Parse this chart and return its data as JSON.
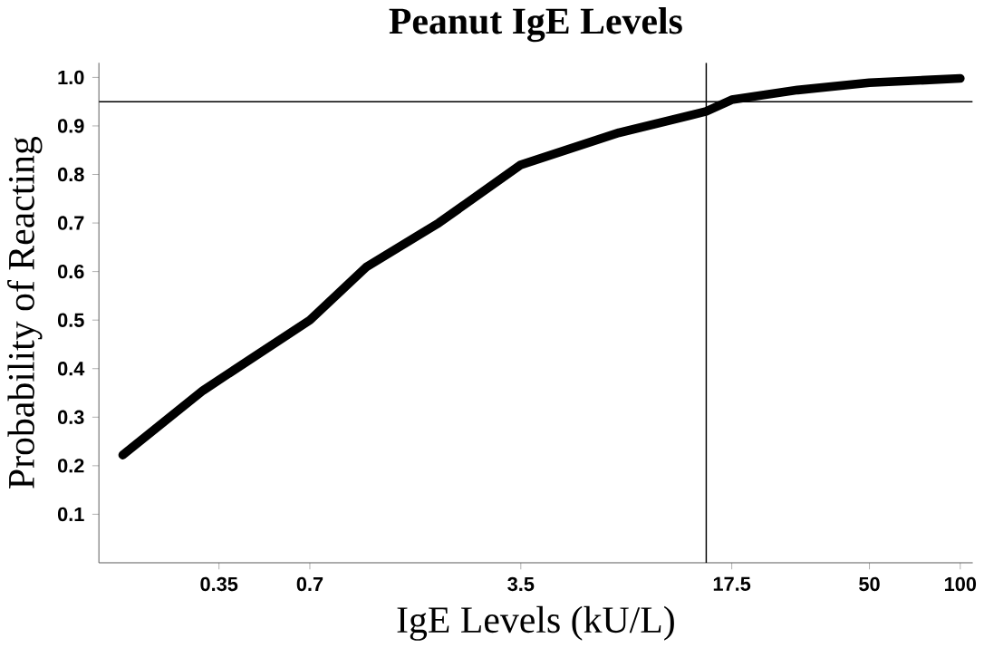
{
  "chart_data": {
    "type": "line",
    "title": "Peanut IgE Levels",
    "xlabel": "IgE Levels (kU/L)",
    "ylabel": "Probability of Reacting",
    "log": "x",
    "xlim": [
      0.14,
      110
    ],
    "ylim": [
      0,
      1.03
    ],
    "xticks": [
      0.35,
      0.7,
      3.5,
      17.5,
      50,
      100
    ],
    "yticks": [
      0.1,
      0.2,
      0.3,
      0.4,
      0.5,
      0.6,
      0.7,
      0.8,
      0.9,
      {
        "value": 1,
        "label": "1.0"
      }
    ],
    "series": [
      {
        "color": "#000000",
        "x": [
          0.168,
          0.31,
          0.459,
          0.7,
          1.08,
          1.87,
          3.5,
          7.4,
          14.4,
          17.5,
          28.9,
          50,
          100
        ],
        "values": [
          0.222,
          0.355,
          0.425,
          0.5,
          0.61,
          0.7,
          0.82,
          0.886,
          0.93,
          0.954,
          0.974,
          0.989,
          0.998
        ]
      }
    ],
    "ref_lines": [
      {
        "axis": "x",
        "value": 14.4,
        "color": "#000000"
      },
      {
        "axis": "y",
        "value": 0.95,
        "color": "#000000"
      }
    ],
    "marker": "none",
    "line_style": "solid"
  }
}
